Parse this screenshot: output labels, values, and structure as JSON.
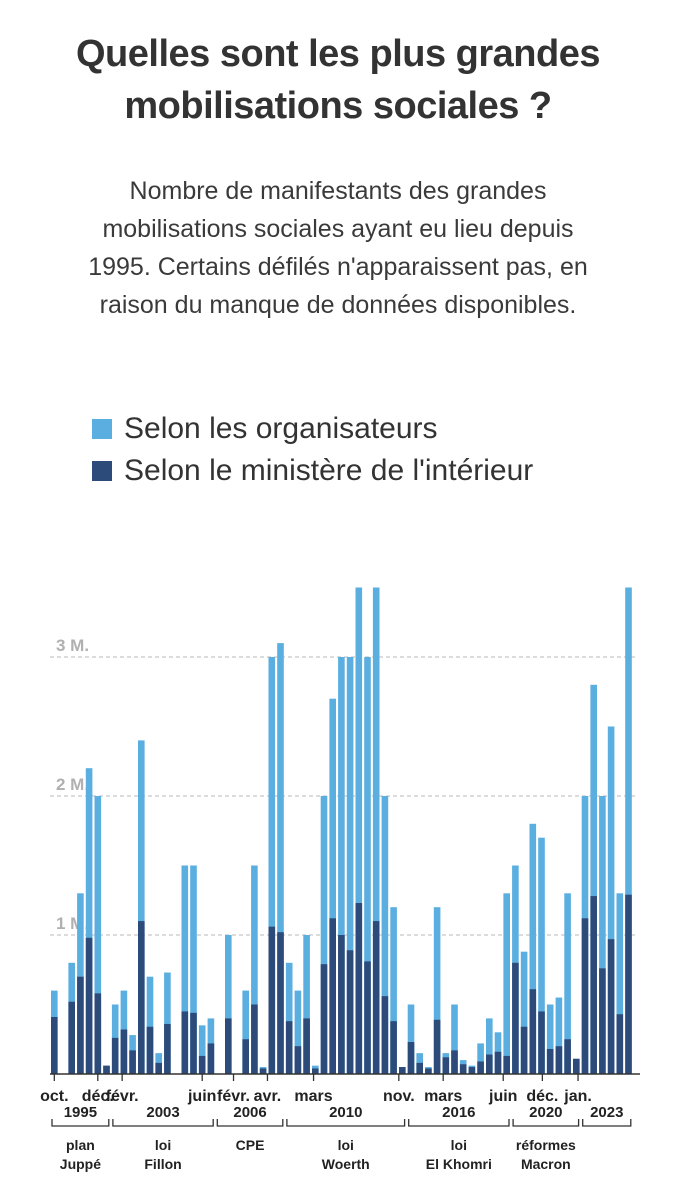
{
  "colors": {
    "organisateurs": "#5aaee0",
    "ministere": "#2c4a7a",
    "grid": "#c8c8c8",
    "axis": "#333333",
    "tick_text": "#222222",
    "ytick_text": "#b0b0b0"
  },
  "chart_data": {
    "type": "bar",
    "title": "Quelles sont les plus grandes mobilisations sociales ?",
    "subtitle": [
      "Nombre de manifestants des grandes",
      "mobilisations sociales ayant eu lieu depuis",
      "1995. Certains défilés n'apparaissent pas, en",
      "raison du manque de données disponibles."
    ],
    "legend": [
      "Selon les organisateurs",
      "Selon le ministère de l'intérieur"
    ],
    "ylim": [
      0,
      3.5
    ],
    "yticks": [
      {
        "value": 1,
        "label": "1 M."
      },
      {
        "value": 2,
        "label": "2 M."
      },
      {
        "value": 3,
        "label": "3 M."
      }
    ],
    "series": [
      {
        "name": "Selon les organisateurs",
        "values": [
          0.6,
          null,
          0.8,
          1.3,
          2.2,
          2.0,
          0.06,
          0.5,
          0.6,
          0.28,
          2.4,
          0.7,
          0.15,
          0.73,
          null,
          1.5,
          1.5,
          0.35,
          0.4,
          null,
          1.0,
          null,
          0.6,
          1.5,
          0.05,
          3.0,
          3.1,
          0.8,
          0.6,
          1.0,
          0.06,
          2.0,
          2.7,
          3.0,
          3.0,
          3.5,
          3.0,
          3.5,
          2.0,
          1.2,
          0.05,
          0.5,
          0.15,
          0.05,
          1.2,
          0.15,
          0.5,
          0.1,
          0.06,
          0.22,
          0.4,
          0.3,
          1.3,
          1.5,
          0.88,
          1.8,
          1.7,
          0.5,
          0.55,
          1.3,
          0.1,
          2.0,
          2.8,
          2.0,
          2.5,
          1.3,
          3.5
        ]
      },
      {
        "name": "Selon le ministère de l'intérieur",
        "values": [
          0.41,
          null,
          0.52,
          0.7,
          0.98,
          0.58,
          0.06,
          0.26,
          0.32,
          0.17,
          1.1,
          0.34,
          0.08,
          0.36,
          null,
          0.45,
          0.44,
          0.13,
          0.22,
          null,
          0.4,
          null,
          0.25,
          0.5,
          0.04,
          1.06,
          1.02,
          0.38,
          0.2,
          0.4,
          0.04,
          0.79,
          1.12,
          1.0,
          0.89,
          1.23,
          0.81,
          1.1,
          0.56,
          0.38,
          0.05,
          0.23,
          0.08,
          0.04,
          0.39,
          0.12,
          0.17,
          0.07,
          0.05,
          0.09,
          0.14,
          0.16,
          0.13,
          0.8,
          0.34,
          0.61,
          0.45,
          0.18,
          0.2,
          0.25,
          0.11,
          1.12,
          1.28,
          0.76,
          0.97,
          0.43,
          1.29
        ]
      }
    ],
    "month_labels": [
      {
        "label": "oct.",
        "bar": 0
      },
      {
        "label": "déc.",
        "bar": 5
      },
      {
        "label": "févr.",
        "bar": 7.8
      },
      {
        "label": "juin",
        "bar": 17
      },
      {
        "label": "févr.",
        "bar": 20.6
      },
      {
        "label": "avr.",
        "bar": 24.5
      },
      {
        "label": "mars",
        "bar": 29.8
      },
      {
        "label": "nov.",
        "bar": 39.6
      },
      {
        "label": "mars",
        "bar": 44.7
      },
      {
        "label": "juin",
        "bar": 51.6
      },
      {
        "label": "déc.",
        "bar": 56.1
      },
      {
        "label": "jan.",
        "bar": 60.2
      }
    ],
    "groups": [
      {
        "year": "1995",
        "label": [
          "plan",
          "Juppé"
        ],
        "start": 0,
        "end": 6
      },
      {
        "year": "2003",
        "label": [
          "loi",
          "Fillon"
        ],
        "start": 7,
        "end": 18
      },
      {
        "year": "2006",
        "label": [
          "CPE"
        ],
        "start": 19,
        "end": 26
      },
      {
        "year": "2010",
        "label": [
          "loi",
          "Woerth"
        ],
        "start": 27,
        "end": 40
      },
      {
        "year": "2016",
        "label": [
          "loi",
          "El Khomri"
        ],
        "start": 41,
        "end": 52
      },
      {
        "year": "2020",
        "label": [
          "réformes",
          "Macron"
        ],
        "start": 53,
        "end": 60
      },
      {
        "year": "2023",
        "label": [],
        "start": 61,
        "end": 66
      }
    ]
  }
}
